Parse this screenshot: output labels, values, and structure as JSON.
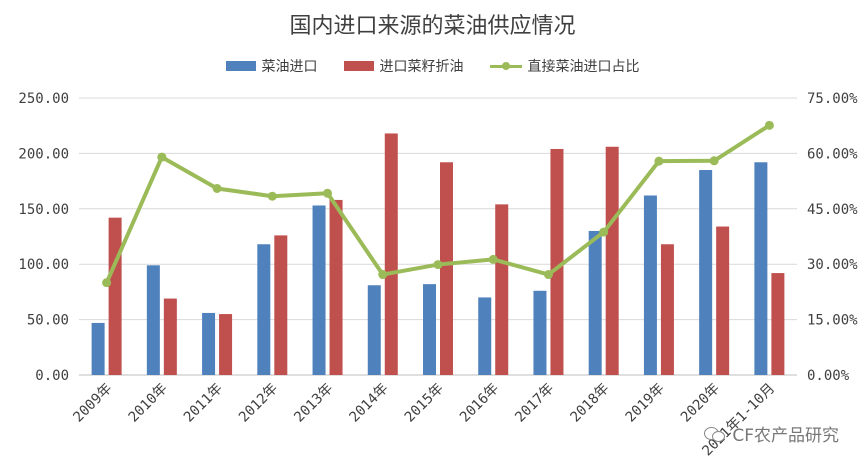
{
  "chart_data": {
    "type": "bar",
    "title": "国内进口来源的菜油供应情况",
    "categories": [
      "2009年",
      "2010年",
      "2011年",
      "2012年",
      "2013年",
      "2014年",
      "2015年",
      "2016年",
      "2017年",
      "2018年",
      "2019年",
      "2020年",
      "2021年1-10月"
    ],
    "series": [
      {
        "name": "菜油进口",
        "type": "bar",
        "axis": "left",
        "color": "#4f81bd",
        "values": [
          47,
          99,
          56,
          118,
          153,
          81,
          82,
          70,
          76,
          130,
          162,
          185,
          192
        ]
      },
      {
        "name": "进口菜籽折油",
        "type": "bar",
        "axis": "left",
        "color": "#c0504d",
        "values": [
          142,
          69,
          55,
          126,
          158,
          218,
          192,
          154,
          204,
          206,
          118,
          134,
          92
        ]
      },
      {
        "name": "直接菜油进口占比",
        "type": "line",
        "axis": "right",
        "color": "#9bbb59",
        "values": [
          0.25,
          0.59,
          0.505,
          0.484,
          0.492,
          0.272,
          0.299,
          0.313,
          0.272,
          0.387,
          0.579,
          0.58,
          0.676
        ]
      }
    ],
    "ylim": [
      0,
      250
    ],
    "yticks": [
      "0.00",
      "50.00",
      "100.00",
      "150.00",
      "200.00",
      "250.00"
    ],
    "y2lim": [
      0,
      0.75
    ],
    "y2ticks": [
      "0.00%",
      "15.00%",
      "30.00%",
      "45.00%",
      "60.00%",
      "75.00%"
    ],
    "grid": true,
    "legend_position": "top"
  },
  "watermark": "CF农产品研究"
}
